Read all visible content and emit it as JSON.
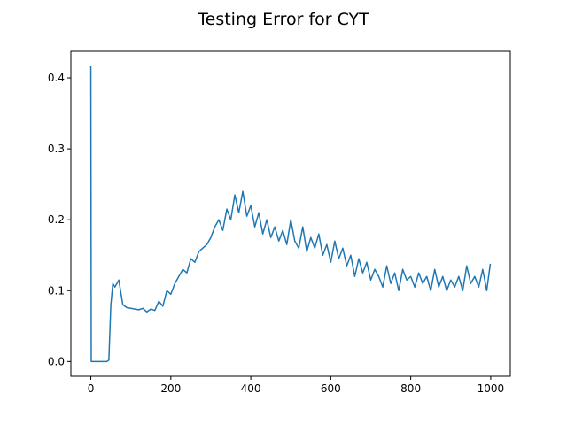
{
  "chart_data": {
    "type": "line",
    "title": "Testing Error for CYT",
    "color": "#1f77b4",
    "x": [
      0,
      1,
      10,
      20,
      30,
      40,
      45,
      50,
      55,
      60,
      70,
      80,
      90,
      100,
      110,
      120,
      130,
      140,
      150,
      160,
      170,
      180,
      190,
      200,
      210,
      220,
      230,
      240,
      250,
      260,
      270,
      280,
      290,
      300,
      310,
      320,
      330,
      340,
      350,
      360,
      370,
      380,
      390,
      400,
      410,
      420,
      430,
      440,
      450,
      460,
      470,
      480,
      490,
      500,
      510,
      520,
      530,
      540,
      550,
      560,
      570,
      580,
      590,
      600,
      610,
      620,
      630,
      640,
      650,
      660,
      670,
      680,
      690,
      700,
      710,
      720,
      730,
      740,
      750,
      760,
      770,
      780,
      790,
      800,
      810,
      820,
      830,
      840,
      850,
      860,
      870,
      880,
      890,
      900,
      910,
      920,
      930,
      940,
      950,
      960,
      970,
      980,
      990,
      999
    ],
    "values": [
      0.417,
      0,
      0,
      0,
      0,
      0,
      0.002,
      0.08,
      0.11,
      0.105,
      0.115,
      0.08,
      0.076,
      0.075,
      0.074,
      0.073,
      0.075,
      0.07,
      0.074,
      0.072,
      0.085,
      0.078,
      0.1,
      0.095,
      0.11,
      0.12,
      0.13,
      0.125,
      0.145,
      0.14,
      0.155,
      0.16,
      0.165,
      0.175,
      0.19,
      0.2,
      0.185,
      0.215,
      0.2,
      0.235,
      0.21,
      0.24,
      0.205,
      0.22,
      0.19,
      0.21,
      0.18,
      0.2,
      0.175,
      0.19,
      0.17,
      0.185,
      0.165,
      0.2,
      0.17,
      0.16,
      0.19,
      0.155,
      0.175,
      0.16,
      0.18,
      0.15,
      0.165,
      0.14,
      0.17,
      0.145,
      0.16,
      0.135,
      0.15,
      0.12,
      0.145,
      0.125,
      0.14,
      0.115,
      0.13,
      0.12,
      0.105,
      0.135,
      0.11,
      0.125,
      0.1,
      0.13,
      0.115,
      0.12,
      0.105,
      0.125,
      0.11,
      0.12,
      0.1,
      0.13,
      0.105,
      0.12,
      0.1,
      0.115,
      0.105,
      0.12,
      0.1,
      0.135,
      0.11,
      0.12,
      0.105,
      0.13,
      0.1,
      0.138
    ],
    "xlim": [
      -49.95,
      1048.95
    ],
    "ylim": [
      -0.0208,
      0.4375
    ],
    "xticks": [
      0,
      200,
      400,
      600,
      800,
      1000
    ],
    "yticks": [
      {
        "value": 0,
        "label": "0.0"
      },
      0.1,
      0.2,
      0.3,
      0.4
    ]
  }
}
